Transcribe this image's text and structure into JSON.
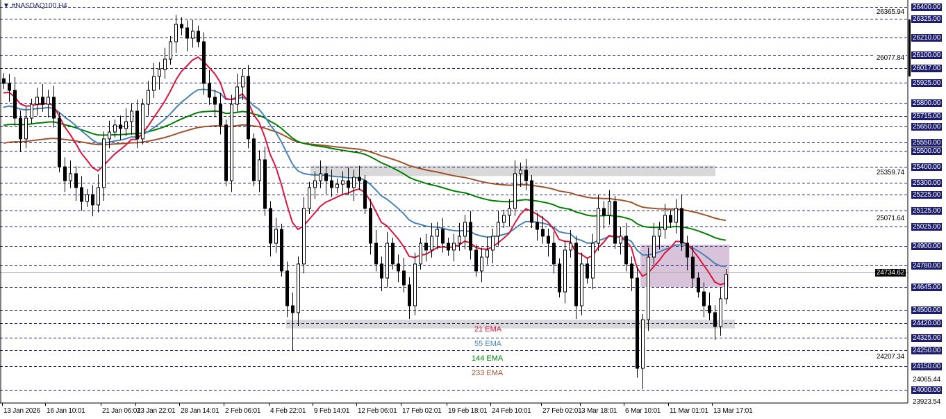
{
  "header": {
    "title": "#NASDAQ100,H4",
    "menu_icon": "triangle-down-icon"
  },
  "colors": {
    "grid": "#1c1c6c",
    "ema21": "#dc143c",
    "ema55": "#4682b4",
    "ema144": "#008000",
    "ema233": "#a0522d",
    "zone_gray": "#d9d9d9",
    "zone_purple": "#d8c3da",
    "label_bg": "#1c1c6c"
  },
  "price_axis": {
    "level_labels": [
      "26400.00",
      "26325.00",
      "26210.00",
      "26100.00",
      "26017.00",
      "25925.00",
      "25800.00",
      "25715.00",
      "25650.00",
      "25550.00",
      "25500.00",
      "25400.00",
      "25300.00",
      "25225.00",
      "25125.00",
      "25025.00",
      "24900.00",
      "24780.00",
      "24645.00",
      "24500.00",
      "24420.00",
      "24325.00",
      "24250.00",
      "24150.00",
      "24000.00"
    ],
    "scale_labels": [
      "26365.94",
      "26077.84",
      "25359.74",
      "25071.64",
      "24207.34",
      "24065.44",
      "23923.54"
    ],
    "current_price": "24734.62"
  },
  "time_axis": {
    "labels": [
      "13 Jan 2026",
      "16 Jan 10:01",
      "21 Jan 06:01",
      "23 Jan 22:01",
      "28 Jan 14:01",
      "2 Feb 06:01",
      "4 Feb 22:01",
      "9 Feb 14:01",
      "12 Feb 06:01",
      "17 Feb 02:01",
      "19 Feb 18:01",
      "24 Feb 10:01",
      "27 Feb 02:01",
      "3 Mar 18:01",
      "6 Mar 10:01",
      "11 Mar 01:01",
      "13 Mar 17:01"
    ]
  },
  "legend": {
    "ema21": "21 EMA",
    "ema55": "55 EMA",
    "ema144": "144 EMA",
    "ema233": "233 EMA"
  },
  "chart_data": {
    "type": "candlestick",
    "symbol": "#NASDAQ100",
    "timeframe": "H4",
    "ylim": [
      23923.54,
      26420
    ],
    "grid": true,
    "close": [
      25921,
      25877,
      25703,
      25573,
      25703,
      25790,
      25834,
      25790,
      25834,
      25703,
      25398,
      25311,
      25355,
      25268,
      25181,
      25224,
      25159,
      25268,
      25573,
      25616,
      25660,
      25638,
      25681,
      25747,
      25573,
      25790,
      25877,
      25965,
      26008,
      26073,
      26182,
      26291,
      26269,
      26204,
      26248,
      26182,
      25921,
      25834,
      25790,
      25660,
      25311,
      25790,
      25899,
      25965,
      25573,
      25311,
      25442,
      25137,
      24919,
      25006,
      24745,
      24527,
      24484,
      24789,
      25137,
      25268,
      25311,
      25355,
      25311,
      25268,
      25289,
      25311,
      25268,
      25333,
      25311,
      25137,
      24919,
      24789,
      24701,
      24919,
      24789,
      24745,
      24658,
      24527,
      24789,
      24919,
      24876,
      24963,
      25006,
      24919,
      24876,
      24919,
      24963,
      25050,
      24876,
      24745,
      24832,
      24876,
      24963,
      25050,
      25094,
      25137,
      25355,
      25377,
      25311,
      25050,
      25006,
      24963,
      24919,
      24789,
      24614,
      24876,
      24919,
      24527,
      24789,
      24701,
      24919,
      25137,
      25094,
      25181,
      24919,
      24963,
      24789,
      24701,
      24135,
      24440,
      24832,
      24963,
      25006,
      25094,
      25050,
      25137,
      24919,
      24832,
      24701,
      24614,
      24527,
      24484,
      24397,
      24571,
      24723
    ],
    "notable_extremes": {
      "high": 26335,
      "low_feb": 24244,
      "low_mar": 24005
    },
    "zones": [
      {
        "from": 25340,
        "to": 25405,
        "color": "gray"
      },
      {
        "from": 24385,
        "to": 24440,
        "color": "gray"
      },
      {
        "from": 24645,
        "to": 24910,
        "color": "purple"
      }
    ],
    "series": [
      {
        "name": "21 EMA"
      },
      {
        "name": "55 EMA"
      },
      {
        "name": "144 EMA"
      },
      {
        "name": "233 EMA"
      }
    ]
  }
}
